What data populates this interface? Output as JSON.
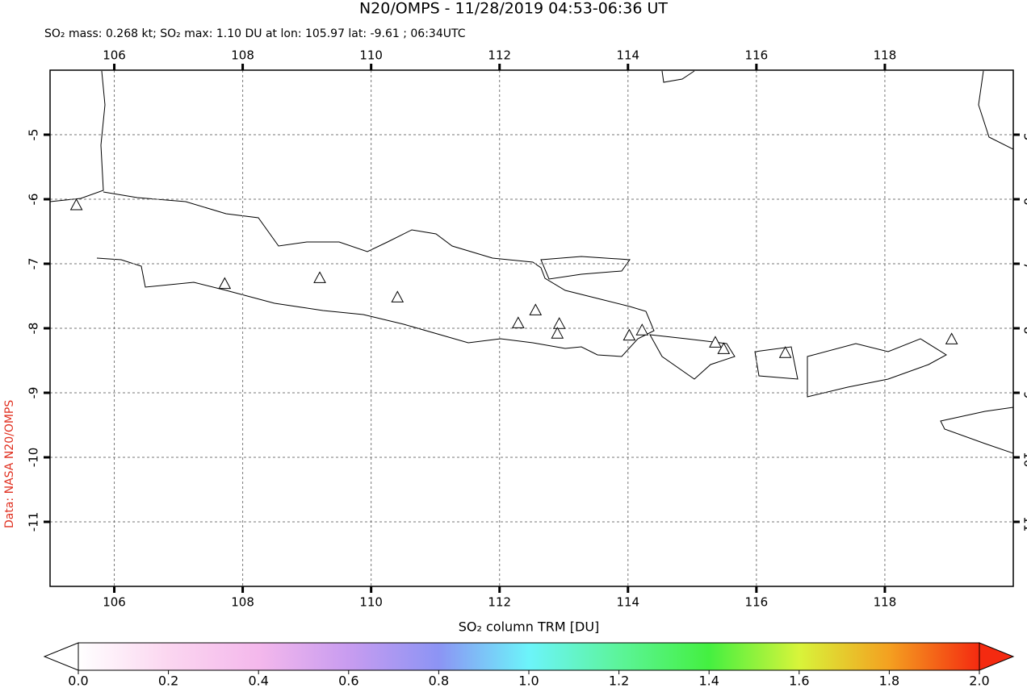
{
  "title": "N20/OMPS - 11/28/2019 04:53-06:36 UT",
  "subtitle": "SO₂ mass: 0.268 kt; SO₂ max: 1.10 DU at lon: 105.97 lat: -9.61 ; 06:34UTC",
  "credit": "Data: NASA N20/OMPS",
  "map": {
    "xlim": [
      105,
      120
    ],
    "ylim": [
      -12,
      -4
    ],
    "xticks": [
      106,
      108,
      110,
      112,
      114,
      116,
      118
    ],
    "yticks": [
      -5,
      -6,
      -7,
      -8,
      -9,
      -10,
      -11
    ],
    "grid": true,
    "volcanoes": [
      {
        "lon": 105.41,
        "lat": -6.1
      },
      {
        "lon": 107.72,
        "lat": -7.32
      },
      {
        "lon": 109.2,
        "lat": -7.23
      },
      {
        "lon": 110.41,
        "lat": -7.53
      },
      {
        "lon": 112.29,
        "lat": -7.93
      },
      {
        "lon": 112.56,
        "lat": -7.73
      },
      {
        "lon": 112.93,
        "lat": -7.94
      },
      {
        "lon": 112.9,
        "lat": -8.09
      },
      {
        "lon": 114.02,
        "lat": -8.12
      },
      {
        "lon": 114.22,
        "lat": -8.04
      },
      {
        "lon": 115.36,
        "lat": -8.23
      },
      {
        "lon": 115.49,
        "lat": -8.33
      },
      {
        "lon": 116.45,
        "lat": -8.39
      },
      {
        "lon": 119.04,
        "lat": -8.18
      }
    ]
  },
  "colorbar": {
    "label": "SO₂ column TRM [DU]",
    "lim": [
      0,
      2
    ],
    "ticks": [
      {
        "value": 0,
        "label": "0.0"
      },
      {
        "value": 0.2,
        "label": "0.2"
      },
      {
        "value": 0.4,
        "label": "0.4"
      },
      {
        "value": 0.6,
        "label": "0.6"
      },
      {
        "value": 0.8,
        "label": "0.8"
      },
      {
        "value": 1,
        "label": "1.0"
      },
      {
        "value": 1.2,
        "label": "1.2"
      },
      {
        "value": 1.4,
        "label": "1.4"
      },
      {
        "value": 1.6,
        "label": "1.6"
      },
      {
        "value": 1.8,
        "label": "1.8"
      },
      {
        "value": 2,
        "label": "2.0"
      }
    ]
  }
}
